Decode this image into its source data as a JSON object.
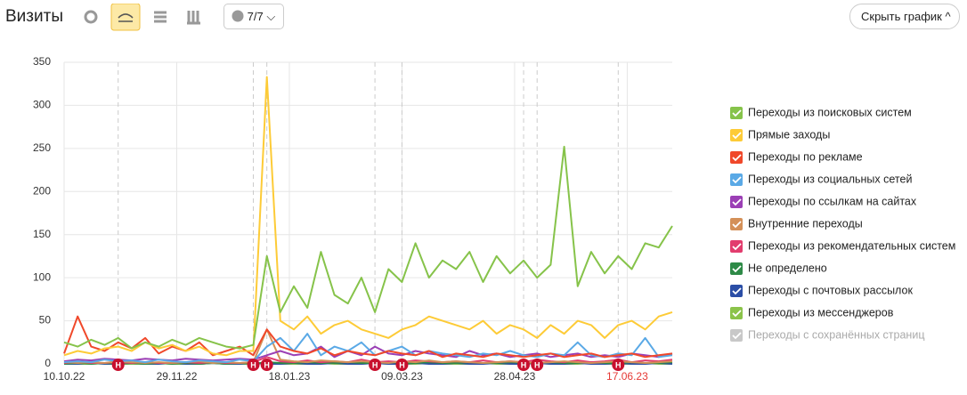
{
  "header": {
    "title": "Визиты",
    "filter_count": "7/7",
    "hide_button": "Скрыть график"
  },
  "chart_data": {
    "type": "line",
    "x": [
      "10.10.22",
      "16.10.22",
      "22.10.22",
      "28.10.22",
      "03.11.22",
      "09.11.22",
      "15.11.22",
      "21.11.22",
      "27.11.22",
      "03.12.22",
      "09.12.22",
      "15.12.22",
      "21.12.22",
      "27.12.22",
      "02.01.23",
      "08.01.23",
      "14.01.23",
      "20.01.23",
      "26.01.23",
      "01.02.23",
      "07.02.23",
      "13.02.23",
      "19.02.23",
      "25.02.23",
      "03.03.23",
      "09.03.23",
      "15.03.23",
      "21.03.23",
      "27.03.23",
      "02.04.23",
      "08.04.23",
      "14.04.23",
      "20.04.23",
      "26.04.23",
      "02.05.23",
      "08.05.23",
      "14.05.23",
      "20.05.23",
      "26.05.23",
      "01.06.23",
      "07.06.23",
      "13.06.23",
      "19.06.23",
      "25.06.23",
      "01.07.23",
      "07.07.23"
    ],
    "xlim": [
      "10.10.22",
      "07.07.23"
    ],
    "xticks": [
      "10.10.22",
      "29.11.22",
      "18.01.23",
      "09.03.23",
      "28.04.23",
      "17.06.23"
    ],
    "xtick_colors": [
      "#333333",
      "#333333",
      "#333333",
      "#333333",
      "#333333",
      "#e53935"
    ],
    "ylim": [
      0,
      350
    ],
    "yticks": [
      0,
      50,
      100,
      150,
      200,
      250,
      300,
      350
    ],
    "grid": true,
    "series": [
      {
        "name": "Переходы из поисковых систем",
        "color": "#86c34a",
        "enabled": true,
        "values": [
          25,
          20,
          28,
          22,
          30,
          18,
          25,
          20,
          28,
          22,
          30,
          25,
          20,
          18,
          22,
          125,
          60,
          90,
          65,
          130,
          80,
          70,
          100,
          60,
          110,
          95,
          140,
          100,
          120,
          110,
          130,
          95,
          125,
          105,
          120,
          100,
          115,
          252,
          90,
          130,
          105,
          125,
          110,
          140,
          135,
          160
        ]
      },
      {
        "name": "Прямые заходы",
        "color": "#fdcb37",
        "enabled": true,
        "values": [
          10,
          15,
          12,
          18,
          20,
          15,
          25,
          18,
          22,
          15,
          20,
          12,
          10,
          15,
          15,
          333,
          50,
          40,
          55,
          35,
          45,
          50,
          40,
          35,
          30,
          40,
          45,
          55,
          50,
          45,
          40,
          50,
          35,
          45,
          40,
          30,
          45,
          35,
          50,
          45,
          30,
          45,
          50,
          40,
          55,
          60
        ]
      },
      {
        "name": "Переходы по рекламе",
        "color": "#f0482a",
        "enabled": true,
        "values": [
          12,
          55,
          20,
          15,
          25,
          18,
          30,
          12,
          20,
          15,
          25,
          10,
          15,
          20,
          10,
          40,
          20,
          15,
          12,
          18,
          10,
          15,
          12,
          10,
          15,
          12,
          10,
          15,
          8,
          12,
          10,
          8,
          12,
          10,
          8,
          10,
          12,
          8,
          10,
          12,
          8,
          10,
          12,
          8,
          10,
          12
        ]
      },
      {
        "name": "Переходы из социальных сетей",
        "color": "#5aa9e6",
        "enabled": true,
        "values": [
          2,
          3,
          2,
          5,
          3,
          4,
          2,
          5,
          3,
          2,
          4,
          3,
          2,
          5,
          3,
          20,
          30,
          15,
          35,
          10,
          20,
          15,
          25,
          10,
          15,
          20,
          10,
          15,
          12,
          10,
          8,
          12,
          10,
          15,
          10,
          8,
          12,
          10,
          25,
          10,
          8,
          12,
          10,
          30,
          8,
          10
        ]
      },
      {
        "name": "Переходы по ссылкам на сайтах",
        "color": "#9b3fb5",
        "enabled": true,
        "values": [
          3,
          5,
          4,
          6,
          5,
          4,
          6,
          5,
          4,
          6,
          5,
          4,
          5,
          6,
          5,
          10,
          15,
          10,
          12,
          20,
          8,
          15,
          10,
          20,
          12,
          10,
          15,
          12,
          10,
          8,
          15,
          10,
          12,
          8,
          10,
          12,
          8,
          10,
          12,
          8,
          10,
          8,
          12,
          10,
          8,
          12
        ]
      },
      {
        "name": "Внутренние переходы",
        "color": "#d49058",
        "enabled": true,
        "values": [
          2,
          1,
          2,
          1,
          3,
          2,
          1,
          2,
          1,
          2,
          3,
          1,
          2,
          1,
          2,
          40,
          5,
          3,
          2,
          4,
          3,
          2,
          3,
          2,
          1,
          3,
          2,
          4,
          2,
          3,
          2,
          1,
          2,
          3,
          2,
          1,
          2,
          3,
          2,
          1,
          2,
          3,
          2,
          1,
          2,
          3
        ]
      },
      {
        "name": "Переходы из рекомендательных систем",
        "color": "#e23d6e",
        "enabled": true,
        "values": [
          1,
          2,
          1,
          1,
          2,
          1,
          2,
          1,
          1,
          2,
          1,
          2,
          1,
          1,
          2,
          8,
          3,
          2,
          4,
          2,
          3,
          2,
          5,
          2,
          3,
          2,
          4,
          3,
          2,
          3,
          2,
          4,
          2,
          3,
          2,
          5,
          3,
          2,
          4,
          2,
          3,
          5,
          2,
          4,
          3,
          5
        ]
      },
      {
        "name": "Не определено",
        "color": "#2e8a47",
        "enabled": true,
        "values": [
          0,
          1,
          0,
          1,
          0,
          1,
          0,
          1,
          0,
          1,
          0,
          1,
          0,
          1,
          0,
          2,
          1,
          1,
          2,
          1,
          1,
          2,
          1,
          1,
          2,
          1,
          1,
          2,
          1,
          1,
          2,
          1,
          1,
          2,
          1,
          1,
          2,
          1,
          1,
          2,
          1,
          1,
          2,
          1,
          1,
          2
        ]
      },
      {
        "name": "Переходы с почтовых рассылок",
        "color": "#2b4ea6",
        "enabled": true,
        "values": [
          0,
          0,
          1,
          0,
          0,
          1,
          0,
          0,
          1,
          0,
          0,
          1,
          0,
          0,
          1,
          0,
          0,
          1,
          0,
          0,
          1,
          0,
          0,
          1,
          0,
          0,
          1,
          0,
          0,
          1,
          0,
          0,
          1,
          0,
          0,
          1,
          0,
          0,
          1,
          0,
          0,
          1,
          0,
          0,
          1,
          0
        ]
      },
      {
        "name": "Переходы из мессенджеров",
        "color": "#8bc34a",
        "enabled": true,
        "values": [
          0,
          0,
          0,
          1,
          0,
          0,
          0,
          1,
          0,
          0,
          0,
          1,
          0,
          0,
          0,
          1,
          0,
          0,
          0,
          1,
          0,
          0,
          0,
          1,
          0,
          0,
          0,
          1,
          0,
          0,
          0,
          1,
          0,
          0,
          0,
          1,
          0,
          0,
          0,
          1,
          0,
          0,
          0,
          1,
          0,
          0
        ]
      },
      {
        "name": "Переходы с сохранённых страниц",
        "color": "#c8c8c8",
        "enabled": false
      }
    ],
    "notes": [
      {
        "x": "03.11.22",
        "label": "Н"
      },
      {
        "x": "02.01.23",
        "label": "Н"
      },
      {
        "x": "08.01.23",
        "label": "Н"
      },
      {
        "x": "25.02.23",
        "label": "Н"
      },
      {
        "x": "09.03.23",
        "label": "Н"
      },
      {
        "x": "02.05.23",
        "label": "Н"
      },
      {
        "x": "08.05.23",
        "label": "Н"
      },
      {
        "x": "13.06.23",
        "label": "Н"
      }
    ]
  }
}
